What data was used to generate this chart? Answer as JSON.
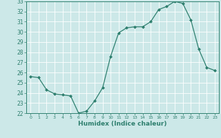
{
  "x": [
    0,
    1,
    2,
    3,
    4,
    5,
    6,
    7,
    8,
    9,
    10,
    11,
    12,
    13,
    14,
    15,
    16,
    17,
    18,
    19,
    20,
    21,
    22,
    23
  ],
  "y": [
    25.6,
    25.5,
    24.3,
    23.9,
    23.8,
    23.7,
    22.0,
    22.2,
    23.2,
    24.5,
    27.6,
    29.9,
    30.4,
    30.5,
    30.5,
    31.0,
    32.2,
    32.5,
    33.0,
    32.8,
    31.2,
    28.3,
    26.5,
    26.2
  ],
  "xlabel": "Humidex (Indice chaleur)",
  "ylim": [
    22,
    33
  ],
  "xlim": [
    -0.5,
    23.5
  ],
  "yticks": [
    22,
    23,
    24,
    25,
    26,
    27,
    28,
    29,
    30,
    31,
    32,
    33
  ],
  "xticks": [
    0,
    1,
    2,
    3,
    4,
    5,
    6,
    7,
    8,
    9,
    10,
    11,
    12,
    13,
    14,
    15,
    16,
    17,
    18,
    19,
    20,
    21,
    22,
    23
  ],
  "line_color": "#2e7f6e",
  "marker_color": "#2e7f6e",
  "bg_color": "#cce8e8",
  "grid_color": "#ffffff",
  "tick_color": "#2e7f6e",
  "label_color": "#2e7f6e",
  "spine_color": "#2e7f6e"
}
